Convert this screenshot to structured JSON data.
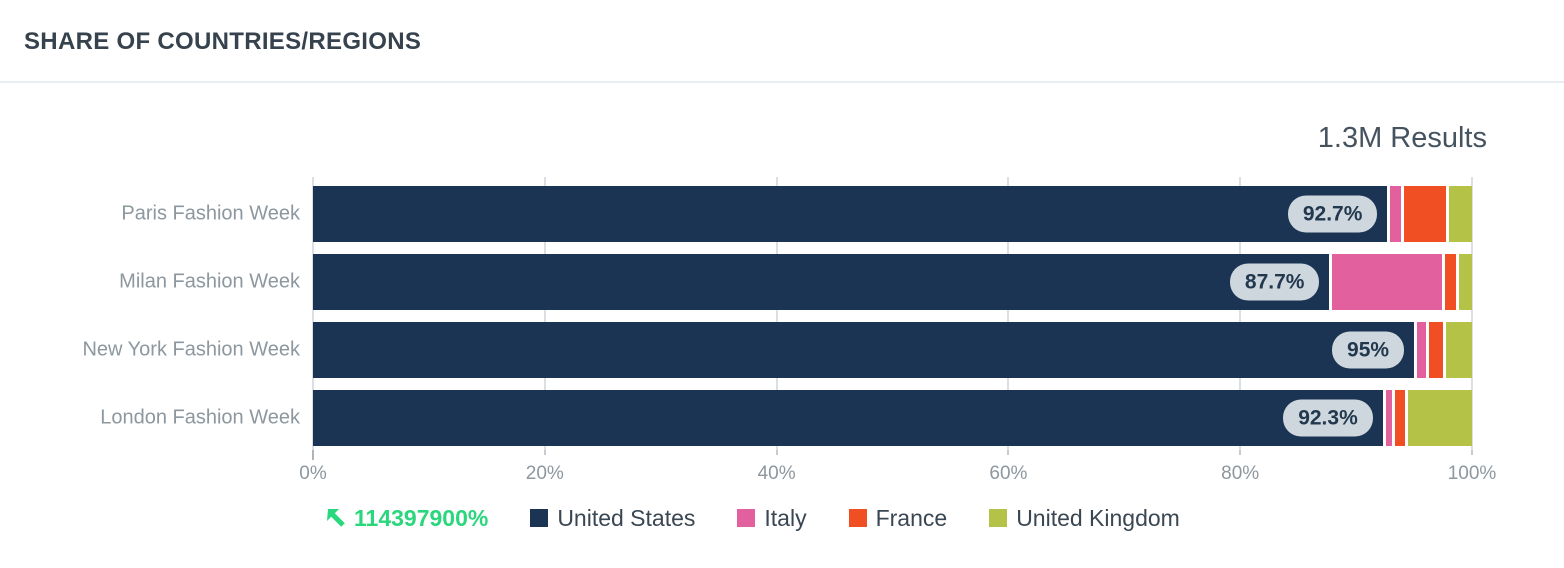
{
  "header": {
    "title": "SHARE OF COUNTRIES/REGIONS"
  },
  "results_label": "1.3M Results",
  "trend": {
    "value": "114397900%",
    "color": "#2BD77C",
    "icon": "trend-up-left-arrow"
  },
  "colors": {
    "united_states": "#1B3454",
    "italy": "#E2609E",
    "france": "#F04E23",
    "united_kingdom": "#B5C248",
    "pill_bg": "#CED7DD",
    "pill_text": "#22384E",
    "grid": "#DBDEE2",
    "axis_text": "#8D979E",
    "title_text": "#36424D",
    "trend_green": "#2BD77C"
  },
  "chart_data": {
    "type": "bar",
    "orientation": "horizontal",
    "stacked": true,
    "title": "SHARE OF COUNTRIES/REGIONS",
    "categories": [
      "Paris Fashion Week",
      "Milan Fashion Week",
      "New York Fashion Week",
      "London Fashion Week"
    ],
    "series": [
      {
        "name": "United States",
        "color": "#1B3454",
        "values": [
          92.7,
          87.7,
          95.0,
          92.3
        ]
      },
      {
        "name": "Italy",
        "color": "#E2609E",
        "values": [
          1.2,
          9.7,
          1.0,
          0.8
        ]
      },
      {
        "name": "France",
        "color": "#F04E23",
        "values": [
          3.9,
          1.2,
          1.5,
          1.1
        ]
      },
      {
        "name": "United Kingdom",
        "color": "#B5C248",
        "values": [
          2.2,
          1.4,
          2.5,
          5.8
        ]
      }
    ],
    "bar_labels": [
      "92.7%",
      "87.7%",
      "95%",
      "92.3%"
    ],
    "x_ticks": [
      "0%",
      "20%",
      "40%",
      "60%",
      "80%",
      "100%"
    ],
    "xlim": [
      0,
      100
    ],
    "grid": true,
    "legend_position": "bottom",
    "legend_metric": "114397900%",
    "annotation": "1.3M Results"
  }
}
